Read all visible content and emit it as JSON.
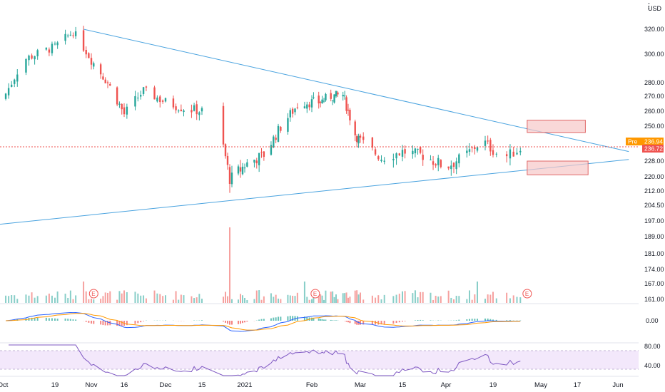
{
  "chart_data": {
    "type": "candlestick",
    "currency": "USD",
    "price_axis": {
      "ticks": [
        "320.00",
        "300.00",
        "280.00",
        "270.00",
        "260.00",
        "250.00",
        "228.00",
        "220.00",
        "212.00",
        "204.50",
        "197.00",
        "189.00",
        "181.00",
        "174.00",
        "167.00",
        "161.00"
      ],
      "ylim": [
        161,
        330
      ]
    },
    "macd_axis": {
      "ticks": [
        "0.00"
      ]
    },
    "rsi_axis": {
      "ticks": [
        "80.00",
        "40.00"
      ]
    },
    "x_ticks": [
      "Oct",
      "19",
      "Nov",
      "16",
      "Dec",
      "15",
      "2021",
      "Feb",
      "Mar",
      "15",
      "Apr",
      "19",
      "May",
      "17",
      "Jun"
    ],
    "pre_label": {
      "label": "Pre",
      "value": "236.94"
    },
    "last_price": "236.72",
    "earnings_marker": "E",
    "price_samples": [
      {
        "date": "Oct 1",
        "close": 268
      },
      {
        "date": "Oct 8",
        "close": 296
      },
      {
        "date": "Oct 19",
        "close": 306
      },
      {
        "date": "Oct 26",
        "close": 318
      },
      {
        "date": "Nov 2",
        "close": 296
      },
      {
        "date": "Nov 9",
        "close": 280
      },
      {
        "date": "Nov 16",
        "close": 258
      },
      {
        "date": "Nov 23",
        "close": 274
      },
      {
        "date": "Dec 1",
        "close": 266
      },
      {
        "date": "Dec 8",
        "close": 262
      },
      {
        "date": "Dec 15",
        "close": 260
      },
      {
        "date": "Dec 22",
        "close": 256
      },
      {
        "date": "Dec 28",
        "close": 218
      },
      {
        "date": "Jan 4",
        "close": 226
      },
      {
        "date": "Jan 12",
        "close": 232
      },
      {
        "date": "Jan 20",
        "close": 252
      },
      {
        "date": "Jan 27",
        "close": 266
      },
      {
        "date": "Feb 5",
        "close": 266
      },
      {
        "date": "Feb 12",
        "close": 270
      },
      {
        "date": "Feb 19",
        "close": 271
      },
      {
        "date": "Feb 26",
        "close": 245
      },
      {
        "date": "Mar 8",
        "close": 230
      },
      {
        "date": "Mar 15",
        "close": 234
      },
      {
        "date": "Mar 22",
        "close": 232
      },
      {
        "date": "Apr 1",
        "close": 225
      },
      {
        "date": "Apr 8",
        "close": 231
      },
      {
        "date": "Apr 15",
        "close": 241
      },
      {
        "date": "Apr 22",
        "close": 230
      },
      {
        "date": "Apr 28",
        "close": 237
      }
    ],
    "trendlines": [
      {
        "from": {
          "date": "Oct 30",
          "price": 320
        },
        "to": {
          "date": "Jun 5",
          "price": 234
        }
      },
      {
        "from": {
          "date": "Sep 28",
          "price": 195
        },
        "to": {
          "date": "Jun 5",
          "price": 229
        }
      }
    ],
    "zones": [
      {
        "from": "Apr 29",
        "to": "May 20",
        "low": 246,
        "high": 254
      },
      {
        "from": "Apr 29",
        "to": "May 21",
        "low": 221,
        "high": 228
      }
    ],
    "colors": {
      "up": "#26a69a",
      "down": "#ef5350",
      "trendline": "#4aa3df",
      "zone": "#f6c7c7",
      "zone_border": "#e06666",
      "macd": "#2962ff",
      "signal": "#ff9800",
      "rsi": "#7e57c2",
      "rsi_band": "#f3e8fb",
      "pre_badge": "#ff9800"
    }
  }
}
